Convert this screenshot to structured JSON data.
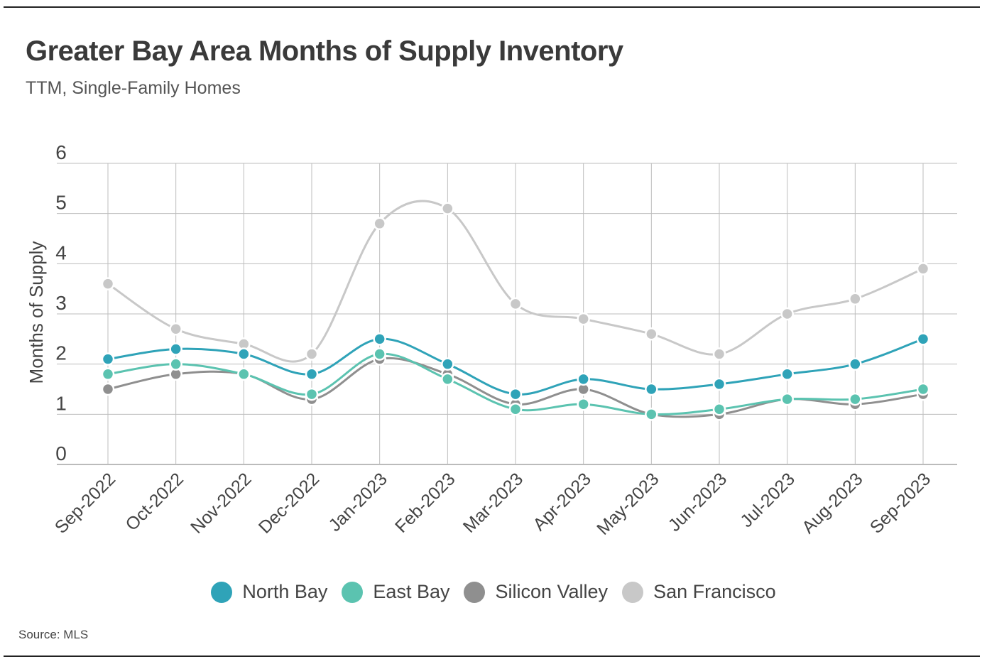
{
  "title": "Greater Bay Area Months of Supply Inventory",
  "subtitle": "TTM, Single-Family Homes",
  "source": "Source:  MLS",
  "chart_data": {
    "type": "line",
    "title": "Greater Bay Area Months of Supply Inventory",
    "subtitle": "TTM, Single-Family Homes",
    "xlabel": "",
    "ylabel": "Months of Supply",
    "ylim": [
      0,
      6
    ],
    "yticks": [
      "0",
      "1",
      "2",
      "3",
      "4",
      "5",
      "6"
    ],
    "grid": true,
    "legend_position": "bottom",
    "categories": [
      "Sep-2022",
      "Oct-2022",
      "Nov-2022",
      "Dec-2022",
      "Jan-2023",
      "Feb-2023",
      "Mar-2023",
      "Apr-2023",
      "May-2023",
      "Jun-2023",
      "Jul-2023",
      "Aug-2023",
      "Sep-2023"
    ],
    "series": [
      {
        "name": "San Francisco",
        "color": "#c8c8c8",
        "values": [
          3.6,
          2.7,
          2.4,
          2.2,
          4.8,
          5.1,
          3.2,
          2.9,
          2.6,
          2.2,
          3.0,
          3.3,
          3.9
        ]
      },
      {
        "name": "Silicon Valley",
        "color": "#8f8f8f",
        "values": [
          1.5,
          1.8,
          1.8,
          1.3,
          2.1,
          1.8,
          1.2,
          1.5,
          1.0,
          1.0,
          1.3,
          1.2,
          1.4
        ]
      },
      {
        "name": "East Bay",
        "color": "#5bc3b0",
        "values": [
          1.8,
          2.0,
          1.8,
          1.4,
          2.2,
          1.7,
          1.1,
          1.2,
          1.0,
          1.1,
          1.3,
          1.3,
          1.5
        ]
      },
      {
        "name": "North Bay",
        "color": "#2fa3b8",
        "values": [
          2.1,
          2.3,
          2.2,
          1.8,
          2.5,
          2.0,
          1.4,
          1.7,
          1.5,
          1.6,
          1.8,
          2.0,
          2.5
        ]
      }
    ]
  },
  "legend": [
    {
      "name": "North Bay",
      "color": "#2fa3b8"
    },
    {
      "name": "East Bay",
      "color": "#5bc3b0"
    },
    {
      "name": "Silicon Valley",
      "color": "#8f8f8f"
    },
    {
      "name": "San Francisco",
      "color": "#c8c8c8"
    }
  ]
}
